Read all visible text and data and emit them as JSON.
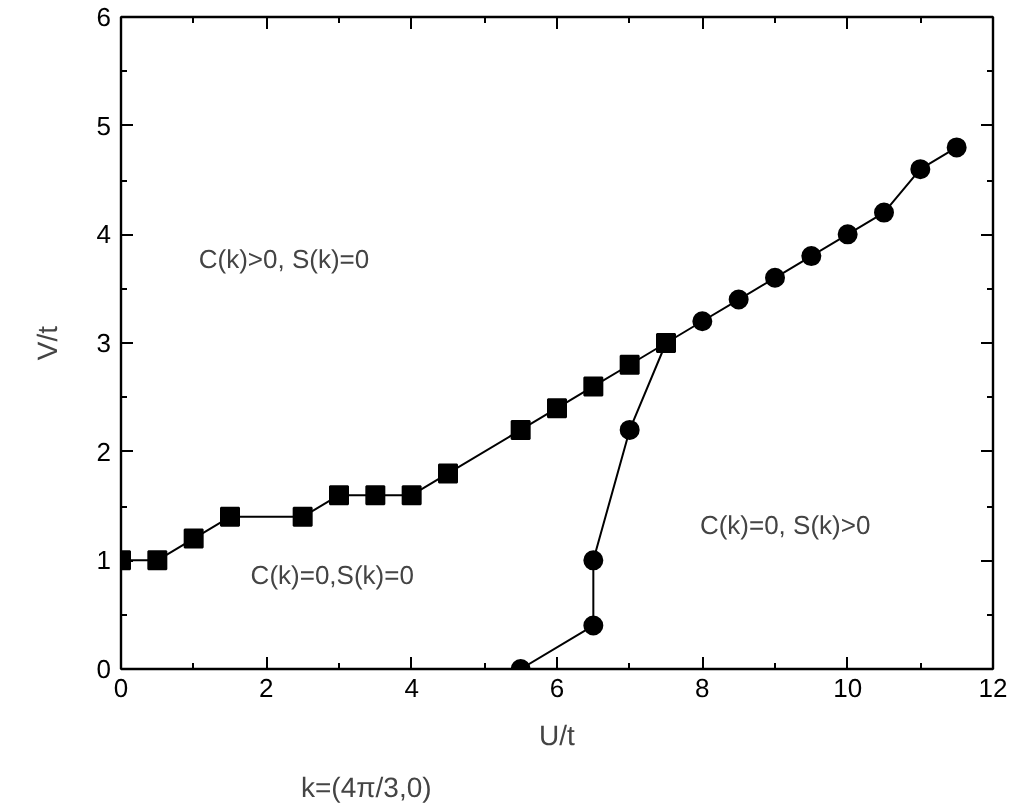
{
  "chart_data": {
    "type": "line",
    "xlabel": "U/t",
    "ylabel": "V/t",
    "xlim": [
      0,
      12
    ],
    "ylim": [
      0,
      6
    ],
    "xticks": [
      0,
      2,
      4,
      6,
      8,
      10,
      12
    ],
    "yticks": [
      0,
      1,
      2,
      3,
      4,
      5,
      6
    ],
    "grid": false,
    "line_style": "solid",
    "series": [
      {
        "color": "#000000",
        "marker": "square",
        "x": [
          0,
          0.5,
          1,
          1.5,
          2.5,
          3,
          3.5,
          4,
          4.5,
          5.5,
          6,
          6.5,
          7,
          7.5
        ],
        "values": [
          1,
          1,
          1.2,
          1.4,
          1.4,
          1.6,
          1.6,
          1.6,
          1.8,
          2.2,
          2.4,
          2.6,
          2.8,
          3.0
        ]
      },
      {
        "color": "#000000",
        "marker": "circle",
        "x": [
          5.5,
          6.5,
          6.5,
          7,
          7.5,
          8,
          8.5,
          9,
          9.5,
          10,
          10.5,
          11,
          11.5
        ],
        "values": [
          0,
          0.4,
          1.0,
          2.2,
          3.0,
          3.2,
          3.4,
          3.6,
          3.8,
          4.0,
          4.2,
          4.6,
          4.8
        ]
      }
    ],
    "annotations": [
      "C(k)>0, S(k)=0",
      "C(k)=0,S(k)=0",
      "C(k)=0, S(k)>0",
      "k=(4π/3,0)"
    ]
  }
}
